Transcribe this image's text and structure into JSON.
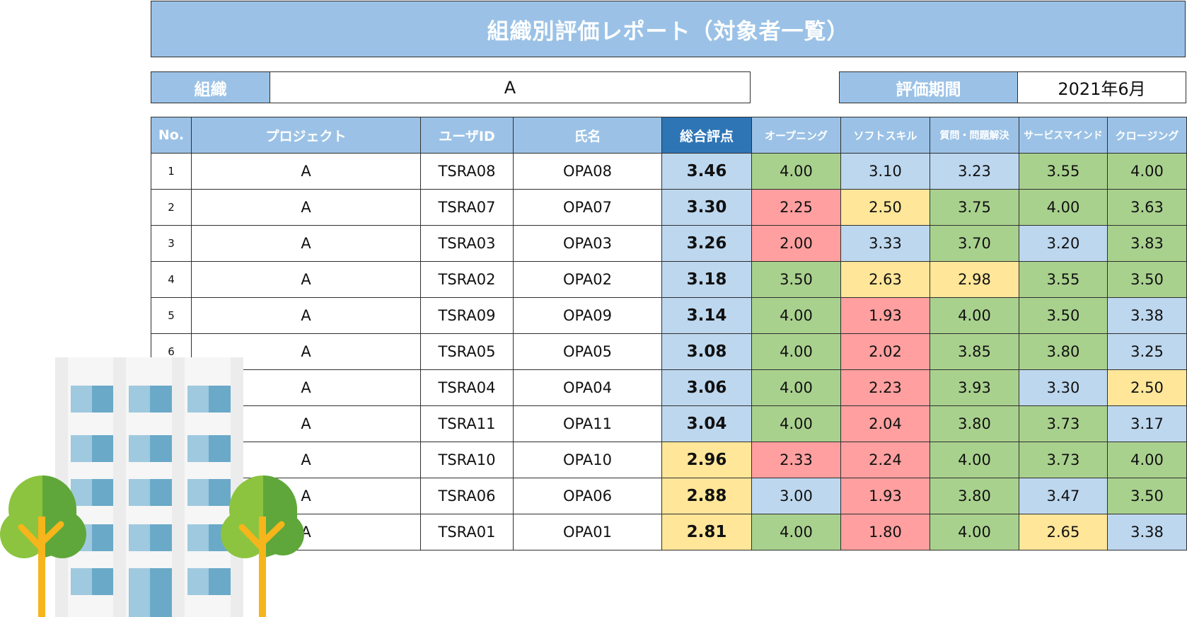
{
  "title": "組織別評価レポート（対象者一覧）",
  "organization": {
    "label": "組織",
    "value": "A"
  },
  "period": {
    "label": "評価期間",
    "value": "2021年6月"
  },
  "table": {
    "headers": [
      "No.",
      "プロジェクト",
      "ユーザID",
      "氏名",
      "総合評点",
      "オープニング",
      "ソフトスキル",
      "質問・問題解決",
      "サービスマインド",
      "クロージング"
    ],
    "rows": [
      {
        "no": "1",
        "project": "A",
        "user_id": "TSRA08",
        "name": "OPA08",
        "scores": [
          "3.46",
          "4.00",
          "3.10",
          "3.23",
          "3.55",
          "4.00"
        ],
        "colors": [
          "blue",
          "green",
          "blue",
          "blue",
          "green",
          "green"
        ]
      },
      {
        "no": "2",
        "project": "A",
        "user_id": "TSRA07",
        "name": "OPA07",
        "scores": [
          "3.30",
          "2.25",
          "2.50",
          "3.75",
          "4.00",
          "3.63"
        ],
        "colors": [
          "blue",
          "red",
          "yellow",
          "green",
          "green",
          "green"
        ]
      },
      {
        "no": "3",
        "project": "A",
        "user_id": "TSRA03",
        "name": "OPA03",
        "scores": [
          "3.26",
          "2.00",
          "3.33",
          "3.70",
          "3.20",
          "3.83"
        ],
        "colors": [
          "blue",
          "red",
          "blue",
          "green",
          "blue",
          "green"
        ]
      },
      {
        "no": "4",
        "project": "A",
        "user_id": "TSRA02",
        "name": "OPA02",
        "scores": [
          "3.18",
          "3.50",
          "2.63",
          "2.98",
          "3.55",
          "3.50"
        ],
        "colors": [
          "blue",
          "green",
          "yellow",
          "yellow",
          "green",
          "green"
        ]
      },
      {
        "no": "5",
        "project": "A",
        "user_id": "TSRA09",
        "name": "OPA09",
        "scores": [
          "3.14",
          "4.00",
          "1.93",
          "4.00",
          "3.50",
          "3.38"
        ],
        "colors": [
          "blue",
          "green",
          "red",
          "green",
          "green",
          "blue"
        ]
      },
      {
        "no": "6",
        "project": "A",
        "user_id": "TSRA05",
        "name": "OPA05",
        "scores": [
          "3.08",
          "4.00",
          "2.02",
          "3.85",
          "3.80",
          "3.25"
        ],
        "colors": [
          "blue",
          "green",
          "red",
          "green",
          "green",
          "blue"
        ]
      },
      {
        "no": "",
        "project": "A",
        "user_id": "TSRA04",
        "name": "OPA04",
        "scores": [
          "3.06",
          "4.00",
          "2.23",
          "3.93",
          "3.30",
          "2.50"
        ],
        "colors": [
          "blue",
          "green",
          "red",
          "green",
          "blue",
          "yellow"
        ]
      },
      {
        "no": "",
        "project": "A",
        "user_id": "TSRA11",
        "name": "OPA11",
        "scores": [
          "3.04",
          "4.00",
          "2.04",
          "3.80",
          "3.73",
          "3.17"
        ],
        "colors": [
          "blue",
          "green",
          "red",
          "green",
          "green",
          "blue"
        ]
      },
      {
        "no": "",
        "project": "A",
        "user_id": "TSRA10",
        "name": "OPA10",
        "scores": [
          "2.96",
          "2.33",
          "2.24",
          "4.00",
          "3.73",
          "4.00"
        ],
        "colors": [
          "yellow",
          "red",
          "red",
          "green",
          "green",
          "green"
        ]
      },
      {
        "no": "",
        "project": "A",
        "user_id": "TSRA06",
        "name": "OPA06",
        "scores": [
          "2.88",
          "3.00",
          "1.93",
          "3.80",
          "3.47",
          "3.50"
        ],
        "colors": [
          "yellow",
          "blue",
          "red",
          "green",
          "blue",
          "green"
        ]
      },
      {
        "no": "",
        "project": "A",
        "user_id": "TSRA01",
        "name": "OPA01",
        "scores": [
          "2.81",
          "4.00",
          "1.80",
          "4.00",
          "2.65",
          "3.38"
        ],
        "colors": [
          "yellow",
          "green",
          "red",
          "green",
          "yellow",
          "blue"
        ]
      }
    ]
  },
  "colors": {
    "header": "#9bc2e6",
    "header_highlight": "#2e75b6",
    "blue": "#bdd7ee",
    "green": "#a9d18e",
    "yellow": "#ffe699",
    "red": "#ff9f9f"
  },
  "illustration": "building-with-trees-icon"
}
